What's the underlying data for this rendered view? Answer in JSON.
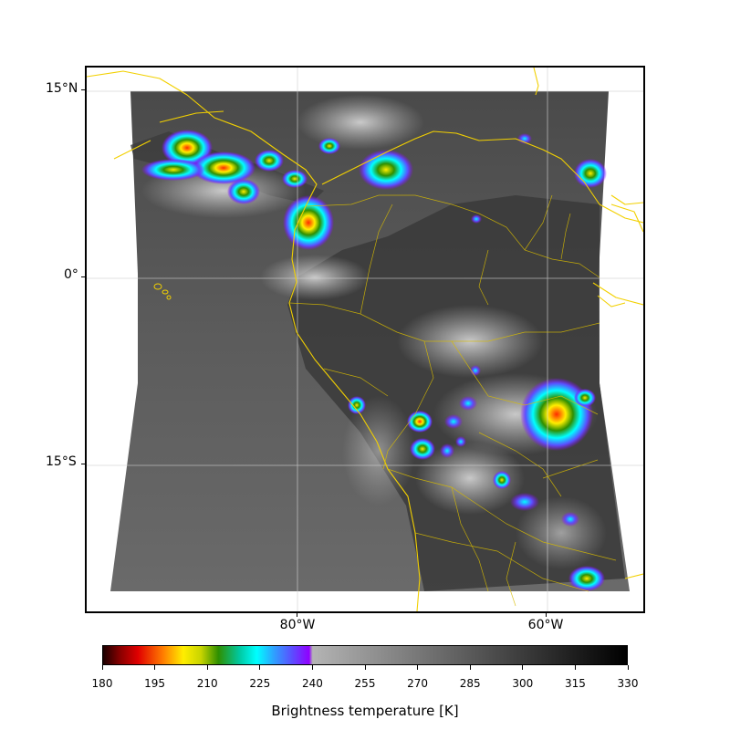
{
  "map": {
    "latitude_labels": [
      "15°N",
      "0°",
      "15°S"
    ],
    "longitude_labels": [
      "80°W",
      "60°W"
    ],
    "gridline_color": "#d0d0d0",
    "coastline_color": "#f2d000",
    "background_color": "#ffffff"
  },
  "colorbar": {
    "title": "Brightness temperature [K]",
    "min": 180,
    "max": 330,
    "gray_start": 240,
    "tick_labels": [
      "180",
      "195",
      "210",
      "225",
      "240",
      "255",
      "270",
      "285",
      "300",
      "315",
      "330"
    ],
    "color_stops": [
      {
        "value": 180,
        "color": "#1a0000"
      },
      {
        "value": 185,
        "color": "#8b0000"
      },
      {
        "value": 190,
        "color": "#e00000"
      },
      {
        "value": 197,
        "color": "#ff7a00"
      },
      {
        "value": 203,
        "color": "#ffee00"
      },
      {
        "value": 208,
        "color": "#c8d400"
      },
      {
        "value": 213,
        "color": "#2f8f00"
      },
      {
        "value": 219,
        "color": "#00c8a0"
      },
      {
        "value": 224,
        "color": "#00ffff"
      },
      {
        "value": 229,
        "color": "#2f9fff"
      },
      {
        "value": 234,
        "color": "#5a50ff"
      },
      {
        "value": 239,
        "color": "#9000ff"
      },
      {
        "value": 240,
        "color": "#b4b4b4"
      },
      {
        "value": 330,
        "color": "#000000"
      }
    ]
  }
}
